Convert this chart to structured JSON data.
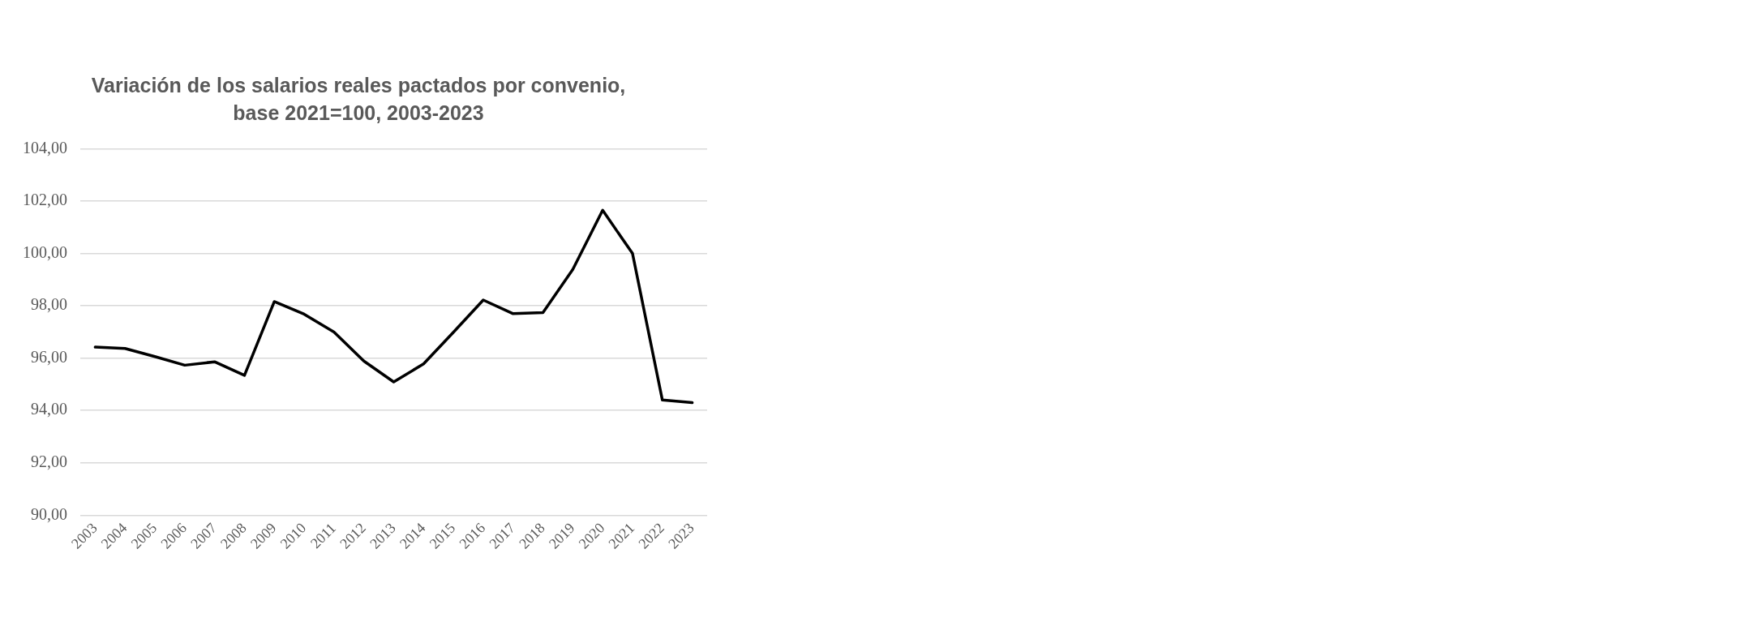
{
  "chart_data": {
    "type": "line",
    "title": "Variación de los salarios reales pactados por convenio, base 2021=100, 2003-2023",
    "categories": [
      "2003",
      "2004",
      "2005",
      "2006",
      "2007",
      "2008",
      "2009",
      "2010",
      "2011",
      "2012",
      "2013",
      "2014",
      "2015",
      "2016",
      "2017",
      "2018",
      "2019",
      "2020",
      "2021",
      "2022",
      "2023"
    ],
    "series": [
      {
        "color": "#000000",
        "values": [
          96.42,
          96.37,
          96.06,
          95.73,
          95.86,
          95.34,
          98.16,
          97.68,
          97.0,
          95.89,
          95.09,
          95.78,
          96.99,
          98.22,
          97.7,
          97.74,
          99.39,
          101.65,
          100.0,
          94.4,
          94.3
        ]
      }
    ],
    "ylim": [
      90,
      104
    ],
    "yticks": [
      {
        "value": 90,
        "label": "90,00"
      },
      {
        "value": 92,
        "label": "92,00"
      },
      {
        "value": 94,
        "label": "94,00"
      },
      {
        "value": 96,
        "label": "96,00"
      },
      {
        "value": 98,
        "label": "98,00"
      },
      {
        "value": 100,
        "label": "100,00"
      },
      {
        "value": 102,
        "label": "102,00"
      },
      {
        "value": 104,
        "label": "104,00"
      }
    ],
    "grid": "y",
    "marker": "none",
    "line_style": "solid"
  }
}
